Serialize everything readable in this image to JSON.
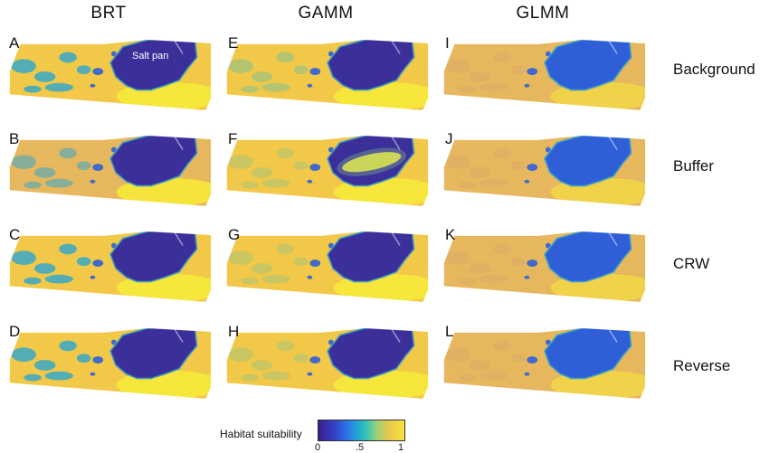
{
  "columns": [
    "BRT",
    "GAMM",
    "GLMM"
  ],
  "rows": [
    "Background",
    "Buffer",
    "CRW",
    "Reverse"
  ],
  "panels": [
    {
      "letter": "A",
      "style": "brt_strong"
    },
    {
      "letter": "E",
      "style": "gamm_mid"
    },
    {
      "letter": "I",
      "style": "glmm"
    },
    {
      "letter": "B",
      "style": "brt_soft"
    },
    {
      "letter": "F",
      "style": "gamm_buffer"
    },
    {
      "letter": "J",
      "style": "glmm"
    },
    {
      "letter": "C",
      "style": "brt_strong"
    },
    {
      "letter": "G",
      "style": "gamm_soft"
    },
    {
      "letter": "K",
      "style": "glmm"
    },
    {
      "letter": "D",
      "style": "brt_strong"
    },
    {
      "letter": "H",
      "style": "gamm_soft"
    },
    {
      "letter": "L",
      "style": "glmm"
    }
  ],
  "annotation": "Salt pan",
  "legend": {
    "title": "Habitat suitability",
    "ticks": [
      "0",
      ".5",
      "1"
    ],
    "colors": [
      "#3a1e8a",
      "#2f70e6",
      "#2ec3b8",
      "#e7c84a",
      "#f7e43a"
    ]
  },
  "palette": {
    "land_high": "#f2c744",
    "land_mid": "#e6b65a",
    "pan_dark": "#3b2f9a",
    "pan_blue": "#2f5fd6",
    "teal": "#38a8c8",
    "green": "#8cc28a",
    "bright_yellow": "#f7e93a"
  }
}
